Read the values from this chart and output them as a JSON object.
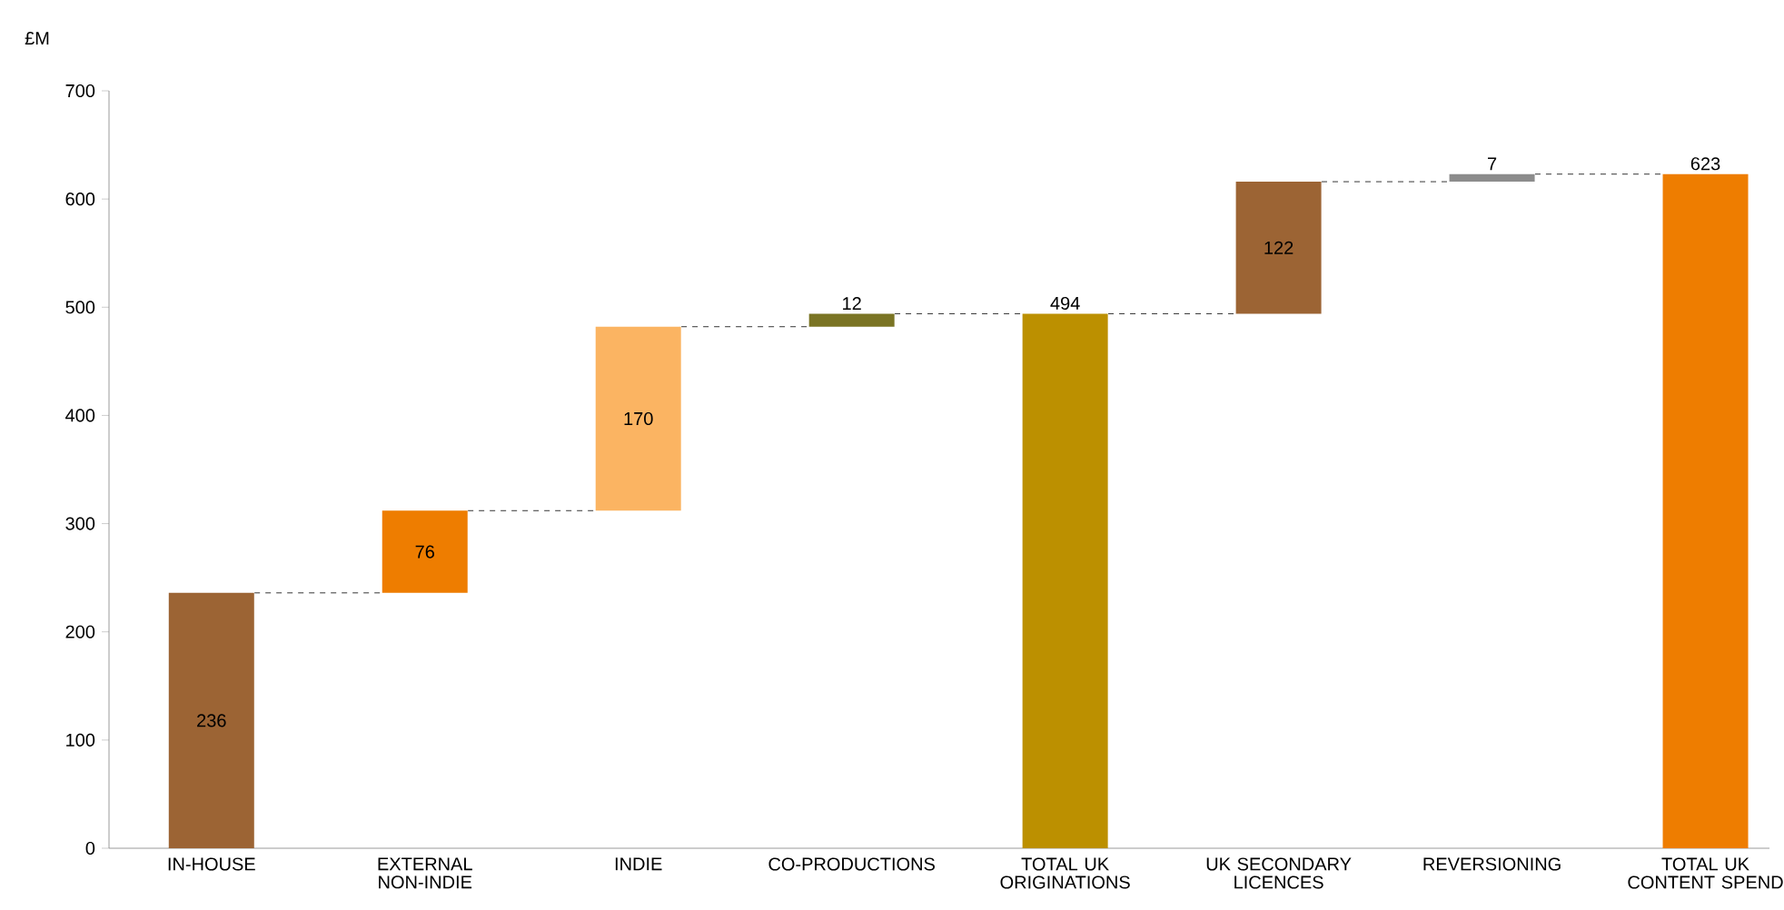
{
  "chart_data": {
    "type": "bar",
    "ylabel": "£M",
    "categories": [
      "IN-HOUSE",
      "EXTERNAL NON-INDIE",
      "INDIE",
      "CO-PRODUCTIONS",
      "TOTAL UK ORIGINATIONS",
      "UK SECONDARY LICENCES",
      "REVERSIONING",
      "TOTAL UK CONTENT SPEND"
    ],
    "base": [
      0,
      236,
      312,
      482,
      0,
      494,
      616,
      0
    ],
    "values": [
      236,
      76,
      170,
      12,
      494,
      122,
      7,
      623
    ],
    "value_labels": [
      "236",
      "76",
      "170",
      "12",
      "494",
      "122",
      "7",
      "623"
    ],
    "colors": [
      "#9c6434",
      "#ee7d00",
      "#fbb462",
      "#7a7424",
      "#bc9000",
      "#9c6434",
      "#8c8c8c",
      "#ee7d00"
    ],
    "ylim": [
      0,
      700
    ],
    "yticks": [
      0,
      100,
      200,
      300,
      400,
      500,
      600,
      700
    ],
    "grid": false
  }
}
